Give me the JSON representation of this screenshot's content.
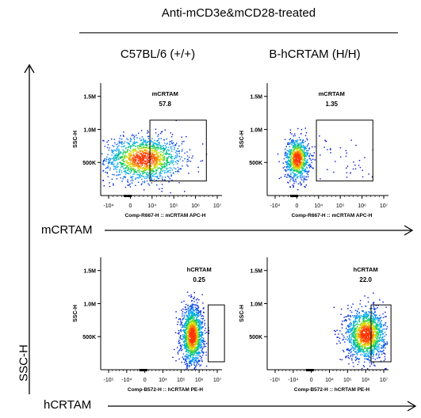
{
  "header": {
    "title": "Anti-mCD3e&mCD28-treated"
  },
  "columns": [
    "C57BL/6 (+/+)",
    "B-hCRTAM (H/H)"
  ],
  "axis_labels": {
    "y_side": "SSC-H",
    "row1_side": "mCRTAM",
    "row2_side": "hCRTAM"
  },
  "colors": {
    "axis": "#000000",
    "gate": "#000000",
    "density_low": "#0000cc",
    "density_high": "#ff3300"
  },
  "chart_data": [
    {
      "type": "scatter",
      "xlabel": "Comp-R667-H :: mCRTAM APC-H",
      "ylabel": "SSC-H",
      "x_ticks": [
        "-10⁴",
        "0",
        "10⁴",
        "10⁵",
        "10⁶",
        "10⁷"
      ],
      "y_ticks": [
        "500K",
        "1.0M",
        "1.5M"
      ],
      "ylim": [
        0,
        1700000
      ],
      "gate": {
        "label": "mCRTAM",
        "value": "57.8"
      },
      "population": {
        "x_center": 0.6,
        "y_center": 560000,
        "x_spread": 0.9,
        "y_spread": 170000
      }
    },
    {
      "type": "scatter",
      "xlabel": "Comp-R667-H :: mCRTAM APC-H",
      "ylabel": "SSC-H",
      "x_ticks": [
        "-10⁴",
        "0",
        "10⁴",
        "10⁵",
        "10⁶",
        "10⁷"
      ],
      "y_ticks": [
        "500K",
        "1.0M",
        "1.5M"
      ],
      "ylim": [
        0,
        1700000
      ],
      "gate": {
        "label": "mCRTAM",
        "value": "1.35"
      },
      "population": {
        "x_center": 0.0,
        "y_center": 560000,
        "x_spread": 0.28,
        "y_spread": 160000
      }
    },
    {
      "type": "scatter",
      "xlabel": "Comp-B572-H :: hCRTAM PE-H",
      "ylabel": "SSC-H",
      "x_ticks": [
        "-10⁵",
        "-10⁴",
        "0",
        "10⁴",
        "10⁵",
        "10⁶",
        "10⁷"
      ],
      "y_ticks": [
        "500K",
        "1.0M",
        "1.5M"
      ],
      "ylim": [
        0,
        1700000
      ],
      "gate": {
        "label": "hCRTAM",
        "value": "0.25"
      },
      "population": {
        "x_center": 2.6,
        "y_center": 520000,
        "x_spread": 0.3,
        "y_spread": 220000
      }
    },
    {
      "type": "scatter",
      "xlabel": "Comp-B572-H :: hCRTAM PE-H",
      "ylabel": "SSC-H",
      "x_ticks": [
        "-10⁵",
        "-10⁴",
        "0",
        "10⁴",
        "10⁵",
        "10⁶",
        "10⁷"
      ],
      "y_ticks": [
        "500K",
        "1.0M",
        "1.5M"
      ],
      "ylim": [
        0,
        1700000
      ],
      "gate": {
        "label": "hCRTAM",
        "value": "22.0"
      },
      "population": {
        "x_center": 3.0,
        "y_center": 540000,
        "x_spread": 0.55,
        "y_spread": 190000
      }
    }
  ]
}
